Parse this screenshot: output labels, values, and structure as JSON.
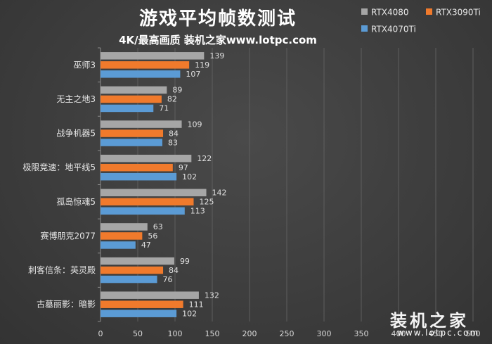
{
  "chart_data": {
    "type": "bar",
    "orientation": "horizontal",
    "title": "游戏平均帧数测试",
    "subtitle": "4K/最高画质  装机之家www.lotpc.com",
    "categories": [
      "巫师3",
      "无主之地3",
      "战争机器5",
      "极限竞速：地平线5",
      "孤岛惊魂5",
      "赛博朋克2077",
      "刺客信条：英灵殿",
      "古墓丽影：暗影"
    ],
    "series": [
      {
        "name": "RTX4080",
        "color": "#a6a6a6",
        "values": [
          139,
          89,
          109,
          122,
          142,
          63,
          99,
          132
        ]
      },
      {
        "name": "RTX3090Ti",
        "color": "#f07a2c",
        "values": [
          119,
          82,
          84,
          97,
          125,
          56,
          84,
          111
        ]
      },
      {
        "name": "RTX4070Ti",
        "color": "#5b9bd5",
        "values": [
          107,
          71,
          83,
          102,
          113,
          47,
          76,
          102
        ]
      }
    ],
    "xlim": [
      0,
      400
    ],
    "xticks": [
      "0",
      "50",
      "100",
      "150",
      "200",
      "250",
      "300",
      "350",
      "400",
      "450",
      "500"
    ],
    "grid": true,
    "legend_position": "top-right"
  },
  "watermark": {
    "brand": "装机之家",
    "url": "www.lotpc.com"
  }
}
